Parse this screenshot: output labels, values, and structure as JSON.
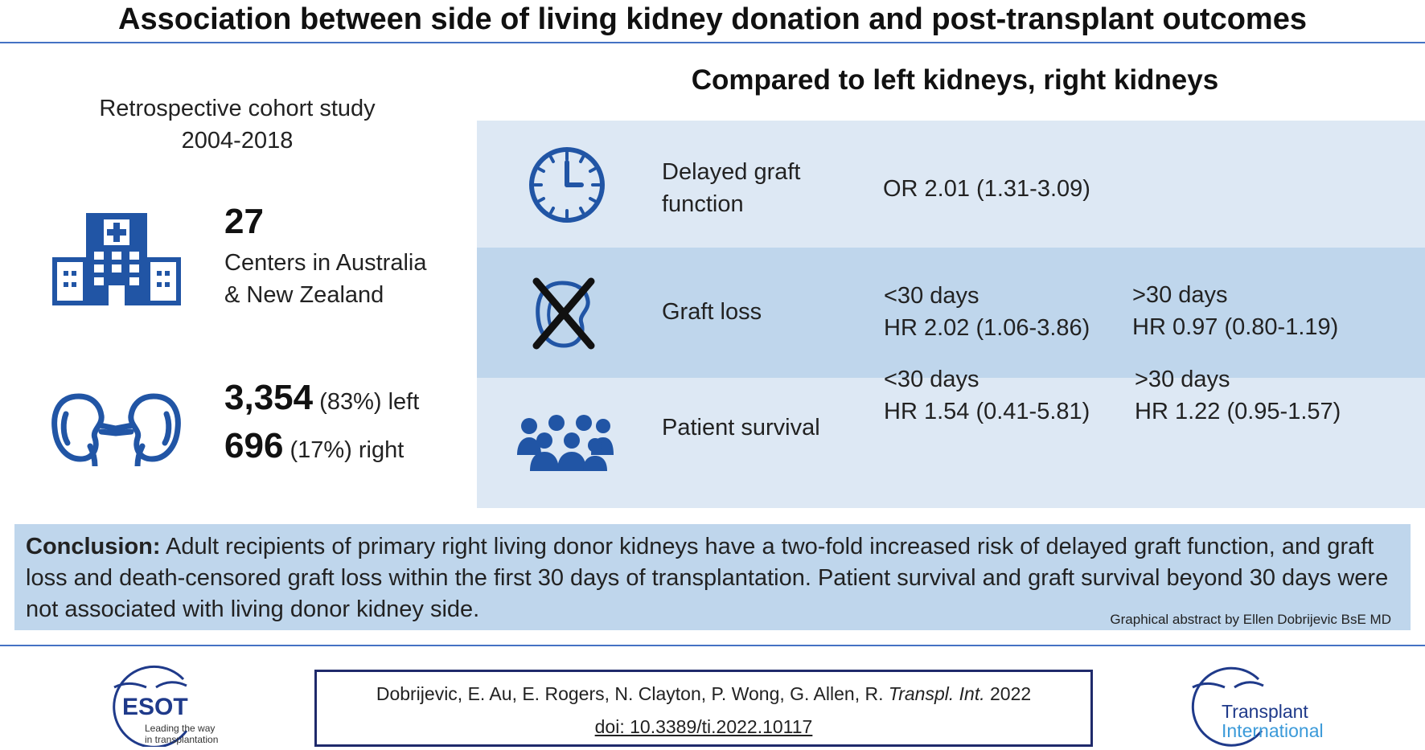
{
  "title": "Association between side of living kidney donation and post-transplant outcomes",
  "study": {
    "line1": "Retrospective cohort study",
    "line2": "2004-2018"
  },
  "centers": {
    "count": "27",
    "line1": "Centers in Australia",
    "line2": "& New Zealand"
  },
  "kidneys": {
    "left_count": "3,354",
    "left_pct": " (83%) left",
    "right_count": "696",
    "right_pct": " (17%) right"
  },
  "compared_heading": "Compared to left kidneys, right kidneys",
  "outcomes": [
    {
      "label_line1": "Delayed graft",
      "label_line2": "function",
      "result": "OR 2.01 (1.31-3.09)"
    },
    {
      "label": "Graft loss",
      "early_label": "<30 days",
      "early_value": "HR 2.02 (1.06-3.86)",
      "late_label": ">30 days",
      "late_value": "HR 0.97 (0.80-1.19)"
    },
    {
      "label": "Patient survival",
      "early_label": "<30 days",
      "early_value": "HR 1.54 (0.41-5.81)",
      "late_label": ">30 days",
      "late_value": "HR 1.22 (0.95-1.57)"
    }
  ],
  "conclusion": {
    "heading": "Conclusion:",
    "text": " Adult recipients of primary right living donor kidneys have a two-fold increased risk of delayed graft function, and graft loss and death-censored graft loss within the first 30 days of transplantation. Patient survival and graft survival beyond 30 days were not associated with living donor kidney side."
  },
  "credit": "Graphical abstract by Ellen Dobrijevic BsE MD",
  "citation": {
    "authors": "Dobrijevic, E.  Au, E. Rogers, N. Clayton, P. Wong, G. Allen, R. ",
    "journal": "Transpl. Int.",
    "year": " 2022",
    "doi": "doi: 10.3389/ti.2022.10117"
  },
  "logos": {
    "esot_name": "ESOT",
    "esot_tagline1": "Leading the way",
    "esot_tagline2": "in transplantation",
    "ti_line1": "Transplant",
    "ti_line2": "International"
  },
  "colors": {
    "accent": "#4472c4",
    "icon": "#2155a5",
    "row_light": "#dde8f4",
    "row_mid": "#bfd6ec",
    "navy": "#1f2a6b"
  }
}
